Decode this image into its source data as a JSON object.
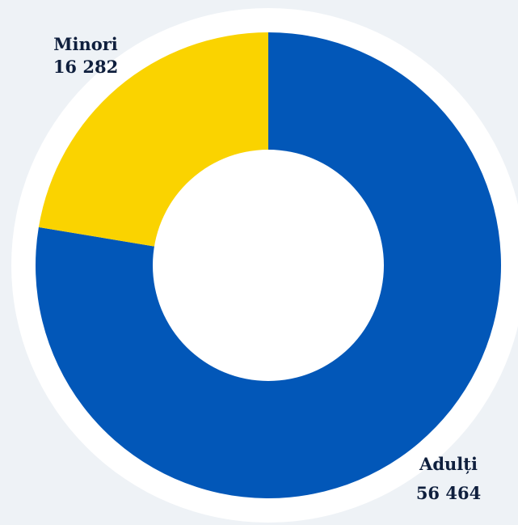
{
  "chart_data": {
    "type": "pie",
    "variant": "donut",
    "categories": [
      "Adulți",
      "Minori"
    ],
    "values": [
      56464,
      16282
    ],
    "value_labels": [
      "56 464",
      "16 282"
    ],
    "colors": [
      "#0257b8",
      "#fad300"
    ],
    "ring_color": "#ffffff",
    "background": "#eef2f6"
  }
}
